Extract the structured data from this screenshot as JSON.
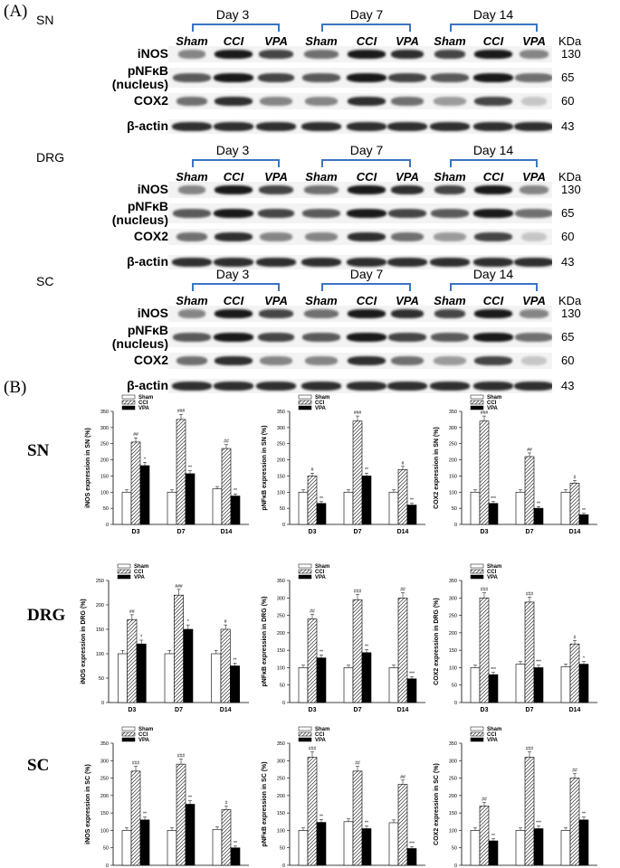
{
  "panel_a_label": "(A)",
  "panel_b_label": "(B)",
  "days": [
    "Day 3",
    "Day 7",
    "Day 14"
  ],
  "groups": [
    "Sham",
    "CCI",
    "VPA"
  ],
  "kda_header": "KDa",
  "blot_sections": [
    {
      "tissue": "SN",
      "proteins": [
        {
          "name": "iNOS",
          "mw": "130"
        },
        {
          "name": "pNFκB (nucleus)",
          "mw": "65"
        },
        {
          "name": "COX2",
          "mw": "60"
        },
        {
          "name": "β-actin",
          "mw": "43"
        }
      ]
    },
    {
      "tissue": "DRG",
      "proteins": [
        {
          "name": "iNOS",
          "mw": "130"
        },
        {
          "name": "pNFκB (nucleus)",
          "mw": "65"
        },
        {
          "name": "COX2",
          "mw": "60"
        },
        {
          "name": "β-actin",
          "mw": "43"
        }
      ]
    },
    {
      "tissue": "SC",
      "proteins": [
        {
          "name": "iNOS",
          "mw": "130"
        },
        {
          "name": "pNFκB (nucleus)",
          "mw": "65"
        },
        {
          "name": "COX2",
          "mw": "60"
        },
        {
          "name": "β-actin",
          "mw": "43"
        }
      ]
    }
  ],
  "row_labels": [
    "SN",
    "DRG",
    "SC"
  ],
  "legend": [
    "Sham",
    "CCI",
    "VPA"
  ],
  "chart_data": [
    {
      "type": "bar",
      "row": "SN",
      "ylabel": "iNOS expression in SN (%)",
      "categories": [
        "D3",
        "D7",
        "D14"
      ],
      "ylim": [
        0,
        350
      ],
      "yticks": [
        0,
        50,
        100,
        150,
        200,
        250,
        300,
        350
      ],
      "series": [
        {
          "name": "Sham",
          "values": [
            100,
            100,
            110
          ]
        },
        {
          "name": "CCI",
          "values": [
            255,
            325,
            235
          ]
        },
        {
          "name": "VPA",
          "values": [
            182,
            157,
            88
          ]
        }
      ],
      "annotations": {
        "CCI": [
          "##",
          "###",
          "##"
        ],
        "VPA": [
          "*",
          "**",
          "**"
        ]
      }
    },
    {
      "type": "bar",
      "row": "SN",
      "ylabel": "pNFκB expression in SN (%)",
      "categories": [
        "D3",
        "D7",
        "D14"
      ],
      "ylim": [
        0,
        350
      ],
      "yticks": [
        0,
        50,
        100,
        150,
        200,
        250,
        300,
        350
      ],
      "series": [
        {
          "name": "Sham",
          "values": [
            100,
            100,
            100
          ]
        },
        {
          "name": "CCI",
          "values": [
            150,
            320,
            170
          ]
        },
        {
          "name": "VPA",
          "values": [
            65,
            150,
            60
          ]
        }
      ],
      "annotations": {
        "CCI": [
          "#",
          "###",
          "#"
        ],
        "VPA": [
          "**",
          "**",
          "**"
        ]
      }
    },
    {
      "type": "bar",
      "row": "SN",
      "ylabel": "COX2 expression in SN (%)",
      "categories": [
        "D3",
        "D7",
        "D14"
      ],
      "ylim": [
        0,
        350
      ],
      "yticks": [
        0,
        50,
        100,
        150,
        200,
        250,
        300,
        350
      ],
      "series": [
        {
          "name": "Sham",
          "values": [
            100,
            100,
            100
          ]
        },
        {
          "name": "CCI",
          "values": [
            320,
            210,
            128
          ]
        },
        {
          "name": "VPA",
          "values": [
            65,
            50,
            30
          ]
        }
      ],
      "annotations": {
        "CCI": [
          "###",
          "##",
          "#"
        ],
        "VPA": [
          "***",
          "**",
          "**"
        ]
      }
    },
    {
      "type": "bar",
      "row": "DRG",
      "ylabel": "iNOS expression in DRG (%)",
      "categories": [
        "D3",
        "D7",
        "D14"
      ],
      "ylim": [
        0,
        250
      ],
      "yticks": [
        0,
        50,
        100,
        150,
        200,
        250
      ],
      "series": [
        {
          "name": "Sham",
          "values": [
            100,
            100,
            100
          ]
        },
        {
          "name": "CCI",
          "values": [
            170,
            220,
            150
          ]
        },
        {
          "name": "VPA",
          "values": [
            120,
            150,
            75
          ]
        }
      ],
      "annotations": {
        "CCI": [
          "##",
          "###",
          "#"
        ],
        "VPA": [
          "*",
          "*",
          "**"
        ]
      }
    },
    {
      "type": "bar",
      "row": "DRG",
      "ylabel": "pNFκB expression in DRG (%)",
      "categories": [
        "D3",
        "D7",
        "D14"
      ],
      "ylim": [
        0,
        350
      ],
      "yticks": [
        0,
        50,
        100,
        150,
        200,
        250,
        300,
        350
      ],
      "series": [
        {
          "name": "Sham",
          "values": [
            100,
            100,
            100
          ]
        },
        {
          "name": "CCI",
          "values": [
            240,
            295,
            300
          ]
        },
        {
          "name": "VPA",
          "values": [
            128,
            143,
            68
          ]
        }
      ],
      "annotations": {
        "CCI": [
          "##",
          "###",
          "##"
        ],
        "VPA": [
          "**",
          "**",
          "***"
        ]
      }
    },
    {
      "type": "bar",
      "row": "DRG",
      "ylabel": "COX2 expression in DRG (%)",
      "categories": [
        "D3",
        "D7",
        "D14"
      ],
      "ylim": [
        0,
        350
      ],
      "yticks": [
        0,
        50,
        100,
        150,
        200,
        250,
        300,
        350
      ],
      "series": [
        {
          "name": "Sham",
          "values": [
            100,
            110,
            103
          ]
        },
        {
          "name": "CCI",
          "values": [
            300,
            288,
            168
          ]
        },
        {
          "name": "VPA",
          "values": [
            80,
            100,
            110
          ]
        }
      ],
      "annotations": {
        "CCI": [
          "###",
          "###",
          "#"
        ],
        "VPA": [
          "***",
          "***",
          "*"
        ]
      }
    },
    {
      "type": "bar",
      "row": "SC",
      "ylabel": "iNOS expression in SC (%)",
      "categories": [
        "D3",
        "D7",
        "D14"
      ],
      "ylim": [
        0,
        350
      ],
      "yticks": [
        0,
        50,
        100,
        150,
        200,
        250,
        300,
        350
      ],
      "series": [
        {
          "name": "Sham",
          "values": [
            100,
            100,
            103
          ]
        },
        {
          "name": "CCI",
          "values": [
            270,
            290,
            160
          ]
        },
        {
          "name": "VPA",
          "values": [
            130,
            175,
            50
          ]
        }
      ],
      "annotations": {
        "CCI": [
          "###",
          "###",
          "#"
        ],
        "VPA": [
          "**",
          "**",
          "**"
        ]
      }
    },
    {
      "type": "bar",
      "row": "SC",
      "ylabel": "pNFκB expression in SC (%)",
      "categories": [
        "D3",
        "D7",
        "D14"
      ],
      "ylim": [
        0,
        350
      ],
      "yticks": [
        0,
        50,
        100,
        150,
        200,
        250,
        300,
        350
      ],
      "series": [
        {
          "name": "Sham",
          "values": [
            100,
            125,
            122
          ]
        },
        {
          "name": "CCI",
          "values": [
            310,
            270,
            232
          ]
        },
        {
          "name": "VPA",
          "values": [
            123,
            105,
            48
          ]
        }
      ],
      "annotations": {
        "CCI": [
          "###",
          "##",
          "##"
        ],
        "VPA": [
          "**",
          "**",
          "***"
        ]
      }
    },
    {
      "type": "bar",
      "row": "SC",
      "ylabel": "COX2 expression in SC (%)",
      "categories": [
        "D3",
        "D7",
        "D14"
      ],
      "ylim": [
        0,
        350
      ],
      "yticks": [
        0,
        50,
        100,
        150,
        200,
        250,
        300,
        350
      ],
      "series": [
        {
          "name": "Sham",
          "values": [
            100,
            100,
            100
          ]
        },
        {
          "name": "CCI",
          "values": [
            170,
            310,
            250
          ]
        },
        {
          "name": "VPA",
          "values": [
            70,
            105,
            130
          ]
        }
      ],
      "annotations": {
        "CCI": [
          "##",
          "###",
          "##"
        ],
        "VPA": [
          "**",
          "***",
          "**"
        ]
      }
    }
  ]
}
